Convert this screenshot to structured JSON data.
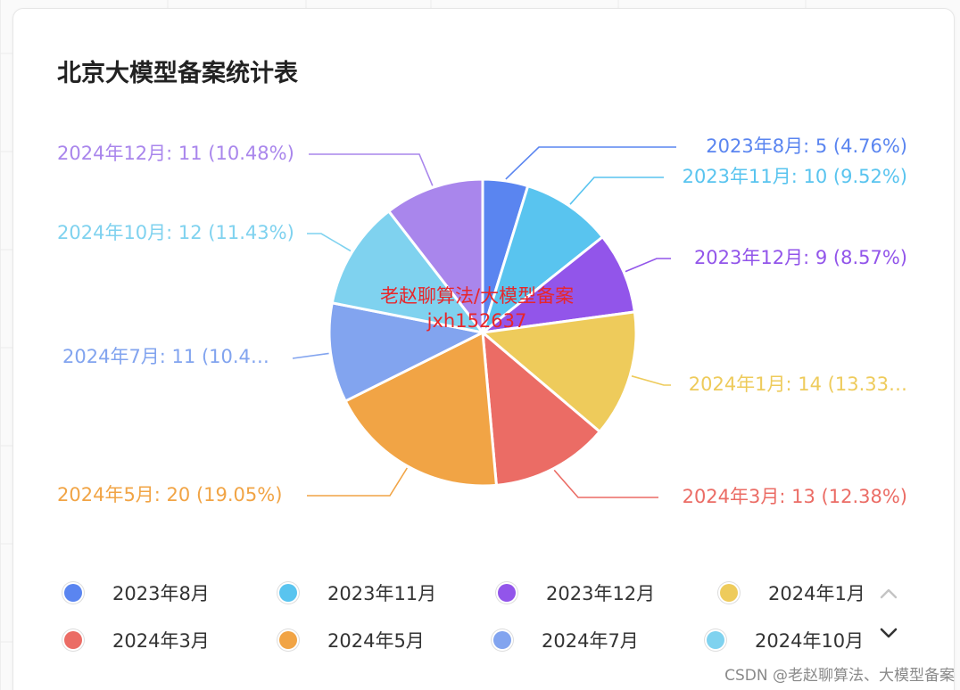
{
  "footer": "CSDN @老赵聊算法、大模型备案",
  "watermark": {
    "line1": "老赵聊算法/大模型备案",
    "line2": "jxh152637"
  },
  "legend": {
    "items": [
      {
        "label": "2023年8月"
      },
      {
        "label": "2023年11月"
      },
      {
        "label": "2023年12月"
      },
      {
        "label": "2024年1月"
      },
      {
        "label": "2024年3月"
      },
      {
        "label": "2024年5月"
      },
      {
        "label": "2024年7月"
      },
      {
        "label": "2024年10月"
      }
    ],
    "pager_up_icon": "chevron-up-icon",
    "pager_down_icon": "chevron-down-icon"
  },
  "chart_data": {
    "type": "pie",
    "title": "北京大模型备案统计表",
    "legend_position": "bottom",
    "slices": [
      {
        "name": "2023年8月",
        "value": 5,
        "percent": "4.76%",
        "color": "#5a85f0",
        "label": "2023年8月: 5 (4.76%)"
      },
      {
        "name": "2023年11月",
        "value": 10,
        "percent": "9.52%",
        "color": "#59c4ef",
        "label": "2023年11月: 10 (9.52%)"
      },
      {
        "name": "2023年12月",
        "value": 9,
        "percent": "8.57%",
        "color": "#9255ea",
        "label": "2023年12月: 9 (8.57%)"
      },
      {
        "name": "2024年1月",
        "value": 14,
        "percent": "13.33%",
        "color": "#eecb5b",
        "label": "2024年1月: 14 (13.33…"
      },
      {
        "name": "2024年3月",
        "value": 13,
        "percent": "12.38%",
        "color": "#eb6c65",
        "label": "2024年3月: 13 (12.38%)"
      },
      {
        "name": "2024年5月",
        "value": 20,
        "percent": "19.05%",
        "color": "#f1a445",
        "label": "2024年5月: 20 (19.05%)"
      },
      {
        "name": "2024年7月",
        "value": 11,
        "percent": "10.48%",
        "color": "#82a4ef",
        "label": "2024年7月: 11 (10.4…"
      },
      {
        "name": "2024年10月",
        "value": 12,
        "percent": "11.43%",
        "color": "#7fd2ef",
        "label": "2024年10月: 12 (11.43%)"
      },
      {
        "name": "2024年12月",
        "value": 11,
        "percent": "10.48%",
        "color": "#a986ec",
        "label": "2024年12月: 11 (10.48%)"
      }
    ]
  }
}
